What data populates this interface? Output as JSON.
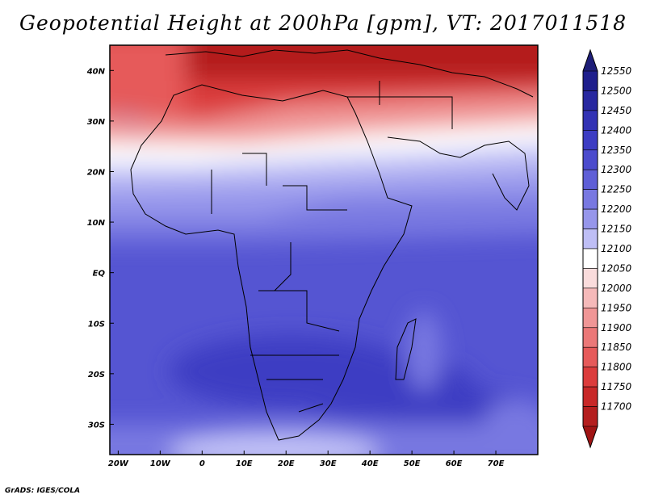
{
  "title": "Geopotential Height at 200hPa [gpm], VT: 2017011518",
  "credit": "GrADS: IGES/COLA",
  "map": {
    "lon_range": [
      -22,
      80
    ],
    "lat_range": [
      -36,
      45
    ],
    "lon_ticks": [
      {
        "value": -20,
        "label": "20W"
      },
      {
        "value": -10,
        "label": "10W"
      },
      {
        "value": 0,
        "label": "0"
      },
      {
        "value": 10,
        "label": "10E"
      },
      {
        "value": 20,
        "label": "20E"
      },
      {
        "value": 30,
        "label": "30E"
      },
      {
        "value": 40,
        "label": "40E"
      },
      {
        "value": 50,
        "label": "50E"
      },
      {
        "value": 60,
        "label": "60E"
      },
      {
        "value": 70,
        "label": "70E"
      }
    ],
    "lat_ticks": [
      {
        "value": 40,
        "label": "40N"
      },
      {
        "value": 30,
        "label": "30N"
      },
      {
        "value": 20,
        "label": "20N"
      },
      {
        "value": 10,
        "label": "10N"
      },
      {
        "value": 0,
        "label": "EQ"
      },
      {
        "value": -10,
        "label": "10S"
      },
      {
        "value": -20,
        "label": "20S"
      },
      {
        "value": -30,
        "label": "30S"
      }
    ]
  },
  "colorbar": {
    "levels": [
      {
        "label": "12550",
        "color": "#1e1e8c"
      },
      {
        "label": "12500",
        "color": "#2828a0"
      },
      {
        "label": "12450",
        "color": "#3232b4"
      },
      {
        "label": "12400",
        "color": "#3c3cc3"
      },
      {
        "label": "12350",
        "color": "#4b4bcd"
      },
      {
        "label": "12300",
        "color": "#5f5fd7"
      },
      {
        "label": "12250",
        "color": "#7878e1"
      },
      {
        "label": "12200",
        "color": "#9696eb"
      },
      {
        "label": "12150",
        "color": "#bebef5"
      },
      {
        "label": "12100",
        "color": "#ffffff"
      },
      {
        "label": "12050",
        "color": "#fadcdc"
      },
      {
        "label": "12000",
        "color": "#f5b9b9"
      },
      {
        "label": "11950",
        "color": "#f09696"
      },
      {
        "label": "11900",
        "color": "#eb7878"
      },
      {
        "label": "11850",
        "color": "#e65a5a"
      },
      {
        "label": "11800",
        "color": "#dc3c3c"
      },
      {
        "label": "11750",
        "color": "#c82828"
      },
      {
        "label": "11700",
        "color": "#b41e1e"
      }
    ],
    "top_color": "#1e1e78",
    "bottom_color": "#a01414"
  }
}
